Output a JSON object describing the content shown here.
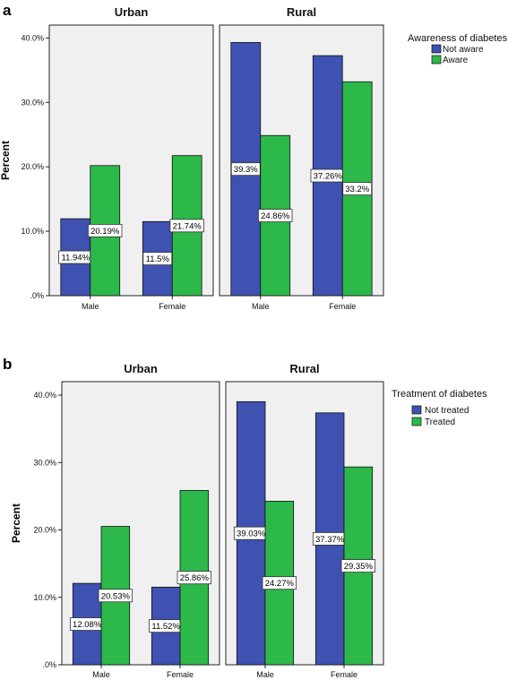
{
  "colors": {
    "series1": "#3f51b1",
    "series2": "#2db84a"
  },
  "chart_data": [
    {
      "type": "bar",
      "panel_letter": "a",
      "ylabel": "Percent",
      "ylim": [
        0,
        42
      ],
      "yticks": [
        ".0%",
        "10.0%",
        "20.0%",
        "30.0%",
        "40.0%"
      ],
      "ytick_values": [
        0,
        10,
        20,
        30,
        40
      ],
      "legend": {
        "title": "Awareness of diabetes",
        "position": "right"
      },
      "facets": [
        {
          "title": "Urban",
          "categories": [
            "Male",
            "Female"
          ],
          "series": [
            {
              "name": "Not aware",
              "values": [
                11.94,
                11.5
              ],
              "labels": [
                "11.94%",
                "11.5%"
              ]
            },
            {
              "name": "Aware",
              "values": [
                20.19,
                21.74
              ],
              "labels": [
                "20.19%",
                "21.74%"
              ]
            }
          ]
        },
        {
          "title": "Rural",
          "categories": [
            "Male",
            "Female"
          ],
          "series": [
            {
              "name": "Not aware",
              "values": [
                39.3,
                37.26
              ],
              "labels": [
                "39.3%",
                "37.26%"
              ]
            },
            {
              "name": "Aware",
              "values": [
                24.86,
                33.2
              ],
              "labels": [
                "24.86%",
                "33.2%"
              ]
            }
          ]
        }
      ]
    },
    {
      "type": "bar",
      "panel_letter": "b",
      "ylabel": "Percent",
      "ylim": [
        0,
        42
      ],
      "yticks": [
        ".0%",
        "10.0%",
        "20.0%",
        "30.0%",
        "40.0%"
      ],
      "ytick_values": [
        0,
        10,
        20,
        30,
        40
      ],
      "legend": {
        "title": "Treatment of diabetes",
        "position": "right"
      },
      "facets": [
        {
          "title": "Urban",
          "categories": [
            "Male",
            "Female"
          ],
          "series": [
            {
              "name": "Not treated",
              "values": [
                12.08,
                11.52
              ],
              "labels": [
                "12.08%",
                "11.52%"
              ]
            },
            {
              "name": "Treated",
              "values": [
                20.53,
                25.86
              ],
              "labels": [
                "20.53%",
                "25.86%"
              ]
            }
          ]
        },
        {
          "title": "Rural",
          "categories": [
            "Male",
            "Female"
          ],
          "series": [
            {
              "name": "Not treated",
              "values": [
                39.03,
                37.37
              ],
              "labels": [
                "39.03%",
                "37.37%"
              ]
            },
            {
              "name": "Treated",
              "values": [
                24.27,
                29.35
              ],
              "labels": [
                "24.27%",
                "29.35%"
              ]
            }
          ]
        }
      ]
    }
  ]
}
